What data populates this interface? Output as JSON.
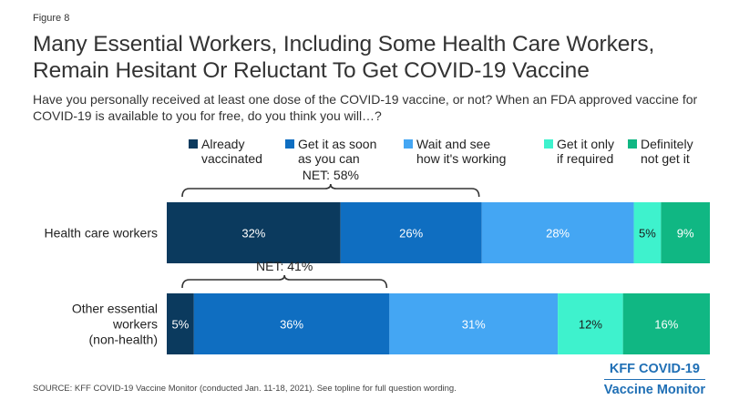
{
  "figure_label": "Figure 8",
  "title": "Many Essential Workers, Including Some Health Care Workers, Remain Hesitant Or Reluctant To Get COVID-19 Vaccine",
  "subtitle": "Have you personally received at least one dose of the COVID-19 vaccine, or not? When an FDA approved vaccine for COVID-19 is available to you for free, do you think you will…?",
  "source": "SOURCE: KFF COVID-19 Vaccine Monitor (conducted Jan. 11-18, 2021). See topline for full question wording.",
  "brand": {
    "line1": "KFF COVID-19",
    "line2": "Vaccine Monitor"
  },
  "chart_data": {
    "type": "bar",
    "orientation": "horizontal",
    "stacked": true,
    "categories": [
      "Health care workers",
      "Other essential workers (non-health)"
    ],
    "category_labels": [
      "Health care workers",
      "Other essential\nworkers\n(non-health)"
    ],
    "series": [
      {
        "name": "Already vaccinated",
        "legend_label": "Already\nvaccinated",
        "color": "#0b3a5e",
        "values": [
          32,
          5
        ]
      },
      {
        "name": "Get it as soon as you can",
        "legend_label": "Get it as soon\nas you can",
        "color": "#0f6ec1",
        "values": [
          26,
          36
        ]
      },
      {
        "name": "Wait and see how it's working",
        "legend_label": "Wait and see\nhow it's working",
        "color": "#44a6f3",
        "values": [
          28,
          31
        ]
      },
      {
        "name": "Get it only if required",
        "legend_label": "Get it only\nif required",
        "color": "#3ef2cd",
        "values": [
          5,
          12
        ]
      },
      {
        "name": "Definitely not get it",
        "legend_label": "Definitely\nnot get it",
        "color": "#10b783",
        "values": [
          9,
          16
        ]
      }
    ],
    "data_labels": [
      [
        "32%",
        "26%",
        "28%",
        "5%",
        "9%"
      ],
      [
        "5%",
        "36%",
        "31%",
        "12%",
        "16%"
      ]
    ],
    "net_annotations": [
      {
        "label": "NET: 58%",
        "value": 58
      },
      {
        "label": "NET: 41%",
        "value": 41
      }
    ],
    "xlim": [
      0,
      100
    ],
    "grid": false,
    "legend_position": "top"
  }
}
